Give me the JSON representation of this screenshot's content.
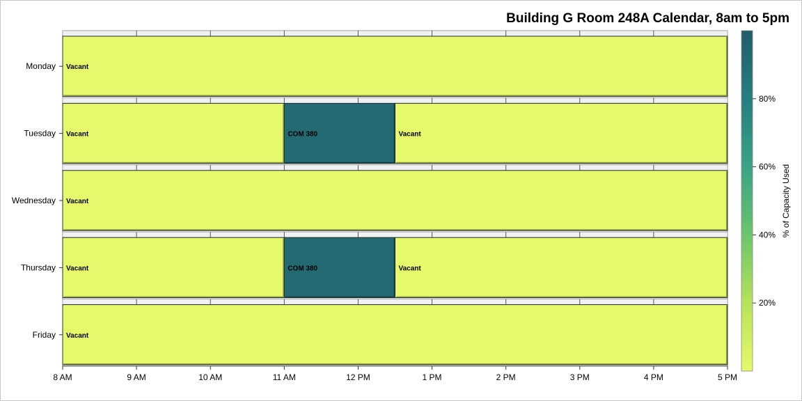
{
  "chart_data": {
    "type": "gantt",
    "title": "Building G Room 248A Calendar, 8am to 5pm",
    "x_ticks": [
      "8 AM",
      "9 AM",
      "10 AM",
      "11 AM",
      "12 PM",
      "1 PM",
      "2 PM",
      "3 PM",
      "4 PM",
      "5 PM"
    ],
    "x_range_hours": [
      8,
      17
    ],
    "days": [
      "Monday",
      "Tuesday",
      "Wednesday",
      "Thursday",
      "Friday"
    ],
    "events": [
      {
        "day": "Monday",
        "label": "Vacant",
        "start": 8,
        "end": 17,
        "capacity_pct": 0
      },
      {
        "day": "Tuesday",
        "label": "Vacant",
        "start": 8,
        "end": 11,
        "capacity_pct": 0
      },
      {
        "day": "Tuesday",
        "label": "COM 380",
        "start": 11,
        "end": 12.5,
        "capacity_pct": 92
      },
      {
        "day": "Tuesday",
        "label": "Vacant",
        "start": 12.5,
        "end": 17,
        "capacity_pct": 0
      },
      {
        "day": "Wednesday",
        "label": "Vacant",
        "start": 8,
        "end": 17,
        "capacity_pct": 0
      },
      {
        "day": "Thursday",
        "label": "Vacant",
        "start": 8,
        "end": 11,
        "capacity_pct": 0
      },
      {
        "day": "Thursday",
        "label": "COM 380",
        "start": 11,
        "end": 12.5,
        "capacity_pct": 92
      },
      {
        "day": "Thursday",
        "label": "Vacant",
        "start": 12.5,
        "end": 17,
        "capacity_pct": 0
      },
      {
        "day": "Friday",
        "label": "Vacant",
        "start": 8,
        "end": 17,
        "capacity_pct": 0
      }
    ],
    "colorbar": {
      "label": "% of Capacity Used",
      "range": [
        0,
        100
      ],
      "ticks": [
        {
          "value": 20,
          "label": "20%"
        },
        {
          "value": 40,
          "label": "40%"
        },
        {
          "value": 60,
          "label": "60%"
        },
        {
          "value": 80,
          "label": "80%"
        }
      ],
      "colors": [
        "#e8f86c",
        "#b6e35a",
        "#6cc46c",
        "#3aa386",
        "#267e7f",
        "#215c6a"
      ]
    },
    "grid": true
  }
}
